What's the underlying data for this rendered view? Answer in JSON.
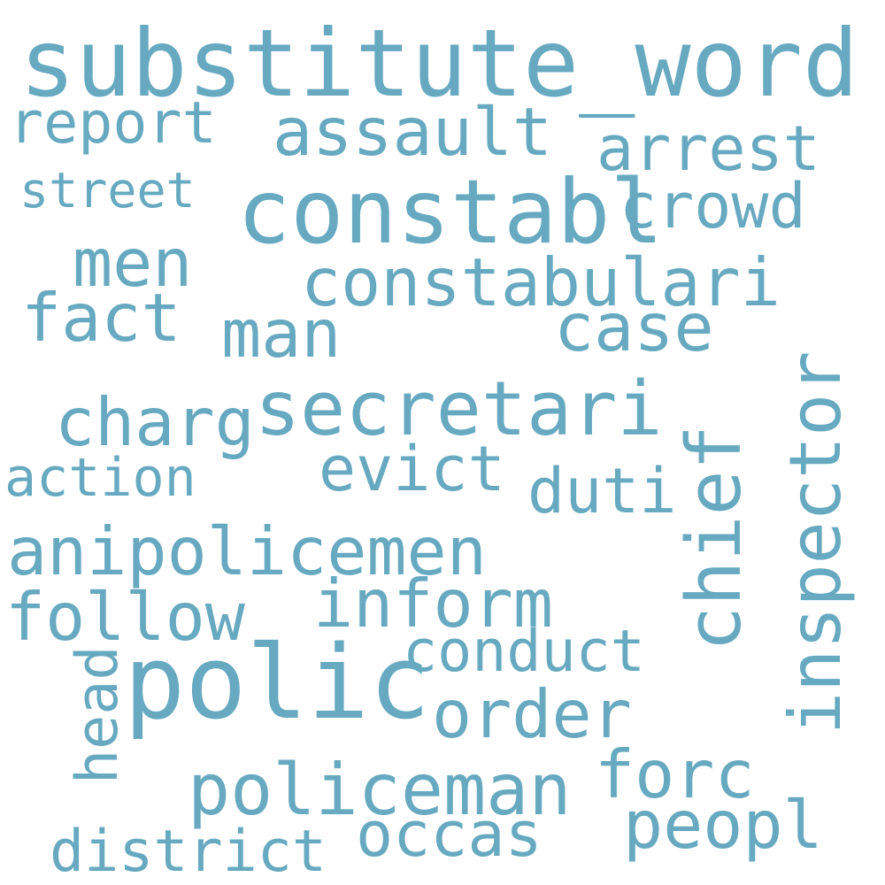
{
  "colors": {
    "background": "#ffffff",
    "word": "#67a9c0"
  },
  "words": {
    "substitute_word": "substitute_word",
    "report": "report",
    "assault": "assault",
    "arrest": "arrest",
    "street": "street",
    "constabl": "constabl",
    "crowd": "crowd",
    "men": "men",
    "constabulari": "constabulari",
    "fact": "fact",
    "man": "man",
    "case": "case",
    "secretari": "secretari",
    "charg": "charg",
    "inspector": "inspector",
    "chief": "chief",
    "action": "action",
    "evict": "evict",
    "duti": "duti",
    "anipolicemen": "anipolicemen",
    "inform": "inform",
    "follow": "follow",
    "conduct": "conduct",
    "polic": "polic",
    "head": "head",
    "order": "order",
    "forc": "forc",
    "policeman": "policeman",
    "peopl": "peopl",
    "occas": "occas",
    "district": "district"
  }
}
